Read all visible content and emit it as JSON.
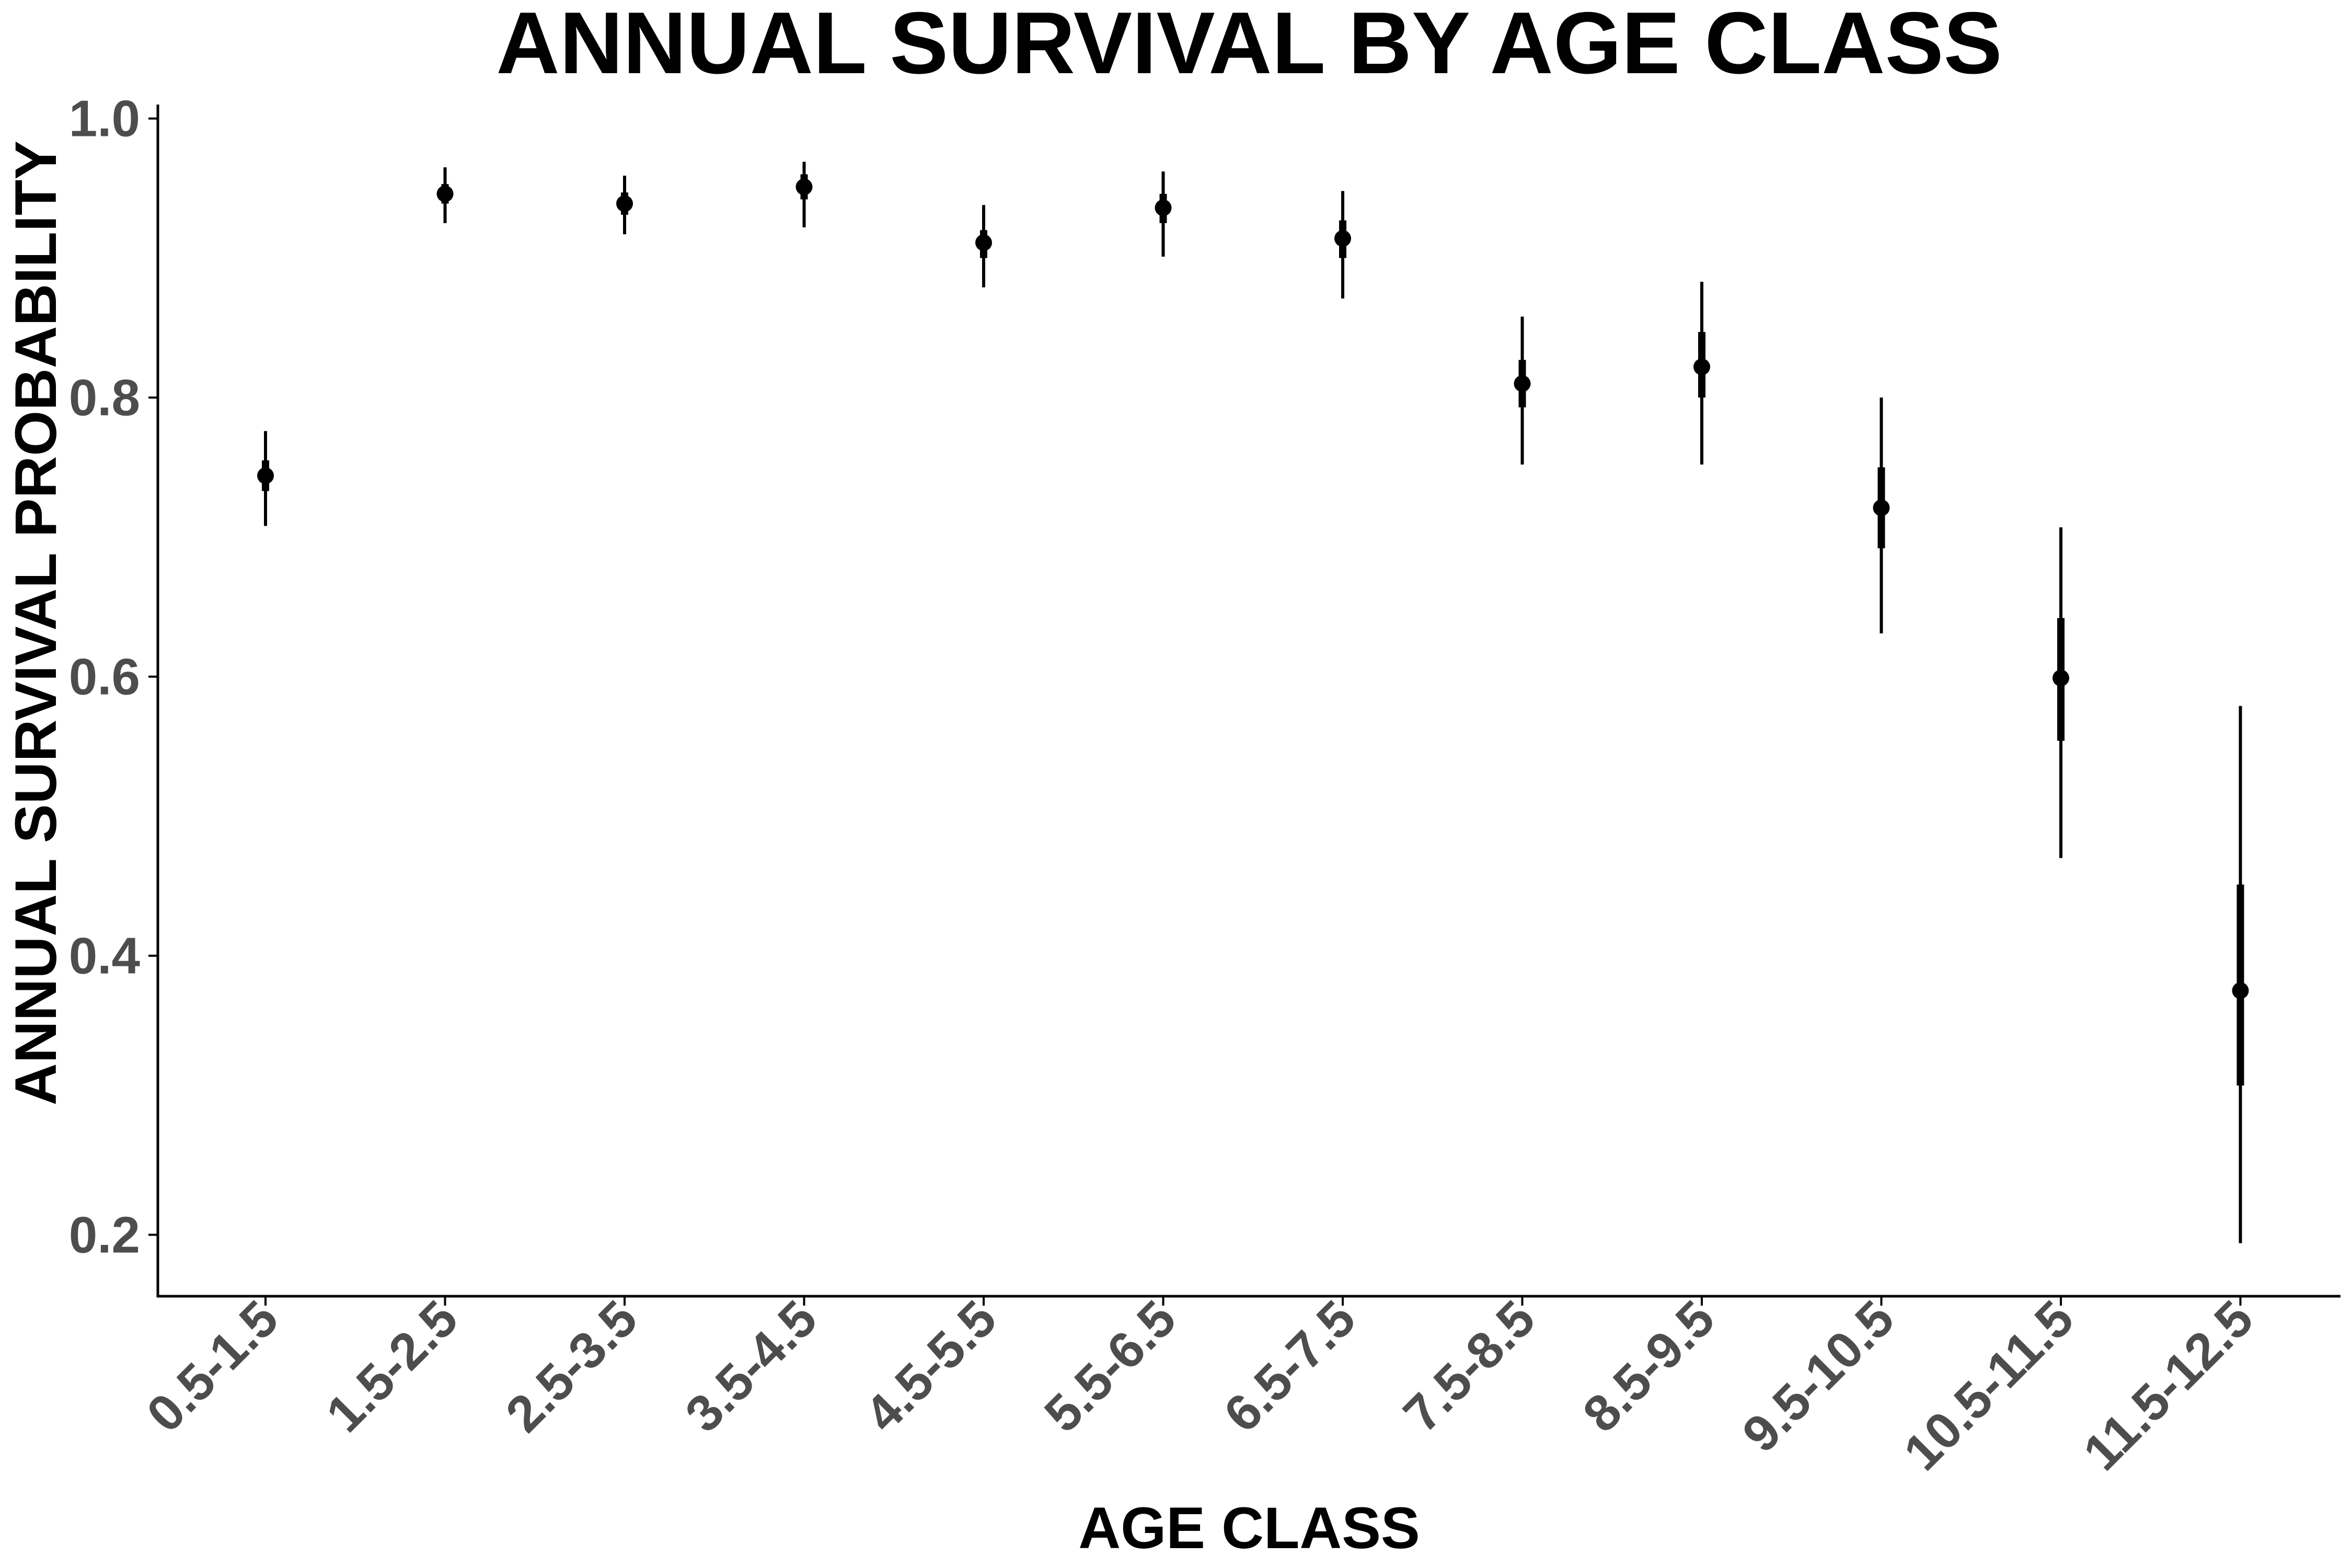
{
  "chart_data": {
    "type": "scatter",
    "title": "ANNUAL SURVIVAL BY AGE CLASS",
    "xlabel": "AGE CLASS",
    "ylabel": "ANNUAL SURVIVAL PROBABILITY",
    "categories": [
      "0.5-1.5",
      "1.5-2.5",
      "2.5-3.5",
      "3.5-4.5",
      "4.5-5.5",
      "5.5-6.5",
      "6.5-7.5",
      "7.5-8.5",
      "8.5-9.5",
      "9.5-10.5",
      "10.5-11.5",
      "11.5-12.5"
    ],
    "values": [
      0.744,
      0.946,
      0.939,
      0.951,
      0.911,
      0.936,
      0.914,
      0.81,
      0.822,
      0.721,
      0.599,
      0.375
    ],
    "ci_outer_low": [
      0.708,
      0.925,
      0.917,
      0.922,
      0.879,
      0.901,
      0.871,
      0.752,
      0.752,
      0.631,
      0.47,
      0.194
    ],
    "ci_outer_high": [
      0.776,
      0.965,
      0.959,
      0.969,
      0.938,
      0.962,
      0.948,
      0.858,
      0.883,
      0.8,
      0.707,
      0.579
    ],
    "ci_inner_low": [
      0.733,
      0.939,
      0.931,
      0.942,
      0.9,
      0.925,
      0.9,
      0.793,
      0.8,
      0.692,
      0.554,
      0.307
    ],
    "ci_inner_high": [
      0.755,
      0.953,
      0.947,
      0.96,
      0.92,
      0.946,
      0.927,
      0.827,
      0.847,
      0.75,
      0.642,
      0.451
    ],
    "yticks": [
      "0.2",
      "0.4",
      "0.6",
      "0.8",
      "1.0"
    ],
    "ylim": [
      0.156,
      1.01
    ],
    "grid": false,
    "legend": "none"
  }
}
